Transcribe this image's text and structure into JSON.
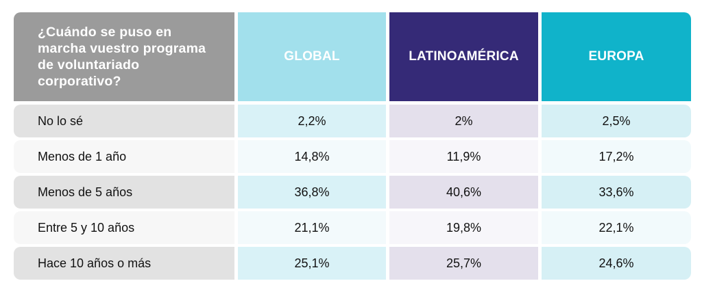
{
  "chart_data": {
    "type": "table",
    "question": "¿Cuándo se puso en marcha vuestro programa de voluntariado corporativo?",
    "columns": [
      "GLOBAL",
      "LATINOAMÉRICA",
      "EUROPA"
    ],
    "rows": [
      {
        "label": "No lo sé",
        "values": [
          "2,2%",
          "2%",
          "2,5%"
        ]
      },
      {
        "label": "Menos de 1 año",
        "values": [
          "14,8%",
          "11,9%",
          "17,2%"
        ]
      },
      {
        "label": "Menos de 5 años",
        "values": [
          "36,8%",
          "40,6%",
          "33,6%"
        ]
      },
      {
        "label": "Entre 5 y 10 años",
        "values": [
          "21,1%",
          "19,8%",
          "22,1%"
        ]
      },
      {
        "label": "Hace 10 años o más",
        "values": [
          "25,1%",
          "25,7%",
          "24,6%"
        ]
      }
    ]
  },
  "colors": {
    "question_header": "#9b9b9b",
    "global_header": "#a2e0ec",
    "latam_header": "#352a77",
    "europa_header": "#10b3ca"
  }
}
